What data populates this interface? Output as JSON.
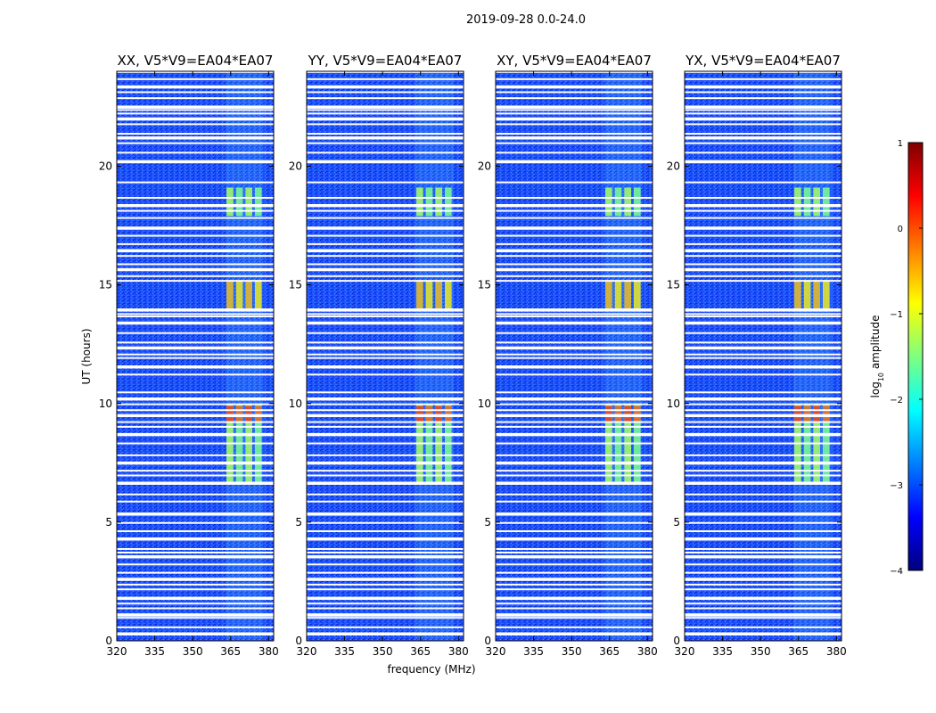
{
  "figure": {
    "suptitle": "2019-09-28 0.0-24.0",
    "xlabel": "frequency (MHz)",
    "ylabel": "UT (hours)",
    "colorbar_label_base": "log",
    "colorbar_label_sub": "10",
    "colorbar_label_rest": " amplitude",
    "colors": {
      "background": "#ffffff",
      "deep_blue": "#0a1fbf",
      "mid_blue": "#1f52ff",
      "gap": "#ffffff"
    }
  },
  "chart_data": {
    "type": "heatmap",
    "colormap": "jet",
    "panels": [
      {
        "title": "XX, V5*V9=EA04*EA07",
        "pol": "XX"
      },
      {
        "title": "YY, V5*V9=EA04*EA07",
        "pol": "YY"
      },
      {
        "title": "XY, V5*V9=EA04*EA07",
        "pol": "XY"
      },
      {
        "title": "YX, V5*V9=EA04*EA07",
        "pol": "YX"
      }
    ],
    "x": {
      "label": "frequency (MHz)",
      "range": [
        320,
        382
      ],
      "ticks": [
        320,
        335,
        350,
        365,
        380
      ]
    },
    "y": {
      "label": "UT (hours)",
      "range": [
        0,
        24
      ],
      "ticks": [
        0,
        5,
        10,
        15,
        20
      ]
    },
    "colorbar": {
      "range": [
        -4,
        1
      ],
      "ticks": [
        -4,
        -3,
        -2,
        -1,
        0,
        1
      ],
      "tick_labels": [
        "−4",
        "−3",
        "−2",
        "−1",
        "0",
        "1"
      ]
    },
    "rfi_band_mhz": [
      363,
      378
    ],
    "flagged_ut_hours": [
      0.3,
      0.55,
      0.95,
      1.1,
      1.35,
      1.55,
      1.8,
      2.15,
      2.35,
      2.6,
      2.85,
      3.2,
      3.55,
      3.7,
      3.85,
      4.3,
      4.6,
      4.95,
      5.35,
      5.85,
      6.15,
      6.65,
      6.95,
      7.15,
      7.5,
      7.8,
      8.3,
      8.7,
      9.0,
      9.2,
      9.5,
      9.7,
      9.95,
      10.2,
      10.45,
      11.2,
      11.55,
      11.9,
      12.05,
      12.35,
      12.55,
      12.95,
      13.4,
      13.65,
      13.75,
      13.95,
      15.15,
      15.35,
      15.65,
      15.85,
      16.2,
      16.45,
      16.7,
      17.05,
      17.4,
      17.8,
      18.1,
      18.35,
      18.65,
      19.3,
      20.2,
      20.55,
      20.95,
      21.2,
      21.35,
      21.75,
      22.0,
      22.2,
      22.35,
      22.5,
      22.85,
      23.1,
      23.35,
      23.65,
      23.95
    ],
    "rfi_intensity_blocks": [
      {
        "ut": [
          6.6,
          10.0
        ],
        "level": 0.55
      },
      {
        "ut": [
          9.2,
          9.9
        ],
        "level": 0.85
      },
      {
        "ut": [
          13.9,
          15.2
        ],
        "level": 0.7
      },
      {
        "ut": [
          17.9,
          19.1
        ],
        "level": 0.55
      }
    ]
  }
}
